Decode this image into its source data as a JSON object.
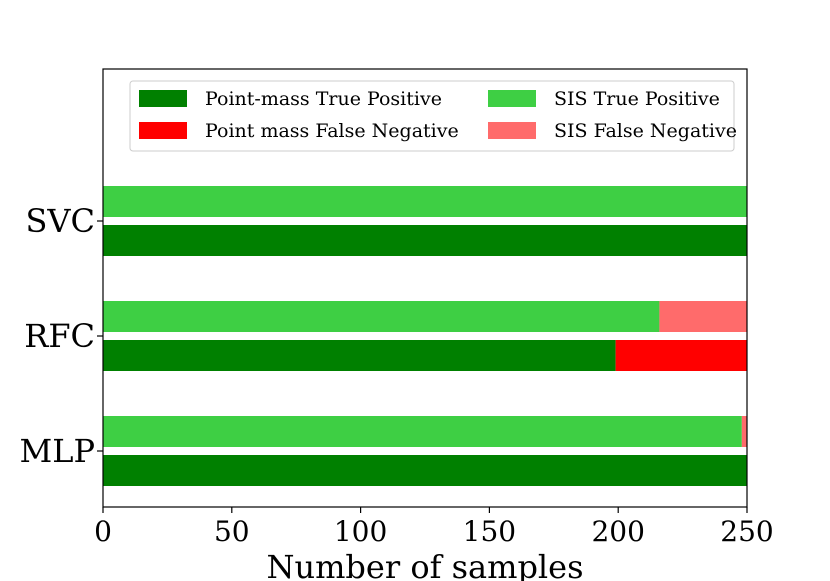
{
  "chart_data": {
    "type": "bar",
    "orientation": "horizontal",
    "stacked": true,
    "categories": [
      "SVC",
      "RFC",
      "MLP"
    ],
    "groups": [
      {
        "name": "SIS",
        "series": [
          {
            "name": "SIS True Positive",
            "color": "#3ecf44",
            "values": [
              250,
              216,
              248
            ]
          },
          {
            "name": "SIS False Negative",
            "color": "#ff6b6b",
            "values": [
              0,
              34,
              2
            ]
          }
        ]
      },
      {
        "name": "Point-mass",
        "series": [
          {
            "name": "Point-mass True Positive",
            "color": "#008000",
            "values": [
              250,
              199,
              250
            ]
          },
          {
            "name": "Point mass False Negative",
            "color": "#ff0000",
            "values": [
              0,
              51,
              0
            ]
          }
        ]
      }
    ],
    "legend": {
      "position": "top",
      "entries": [
        {
          "label": "Point-mass True Positive",
          "color": "#008000"
        },
        {
          "label": "Point mass False Negative",
          "color": "#ff0000"
        },
        {
          "label": "SIS True Positive",
          "color": "#3ecf44"
        },
        {
          "label": "SIS False Negative",
          "color": "#ff6b6b"
        }
      ]
    },
    "title": "",
    "xlabel": "Number of samples",
    "ylabel": "",
    "xlim": [
      0,
      250
    ],
    "xticks": [
      "0",
      "50",
      "100",
      "150",
      "200",
      "250"
    ],
    "grid": false
  }
}
